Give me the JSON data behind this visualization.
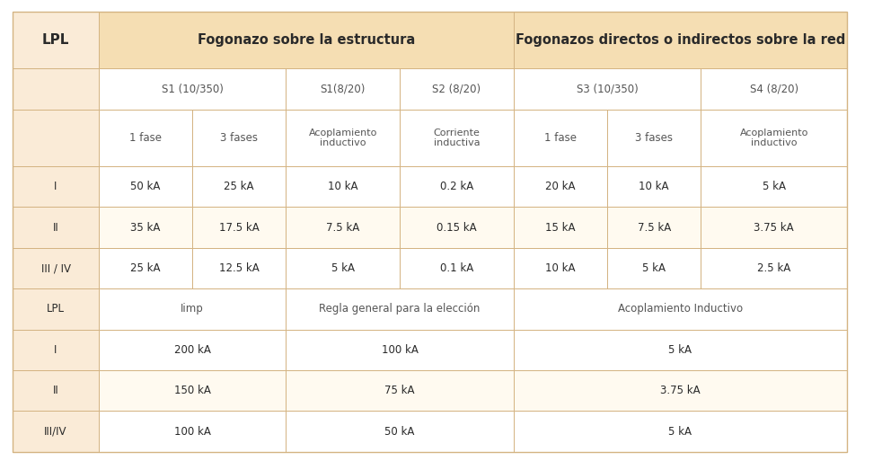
{
  "bg_color": "#FFFFFF",
  "header_bg": "#F5DEB3",
  "header_text_color": "#1A1A1A",
  "subheader_bg": "#FFFFFF",
  "subheader_text_color": "#555555",
  "lpl_col_bg": "#FAEBD7",
  "row_bg1": "#FFFFFF",
  "row_bg2": "#FFFAF0",
  "section_row_bg": "#FFFFFF",
  "border_color": "#D4B483",
  "text_dark": "#2A2A2A",
  "text_gray": "#666666",
  "col_props": [
    0.085,
    0.093,
    0.093,
    0.113,
    0.113,
    0.093,
    0.093,
    0.145
  ],
  "row_props": [
    0.115,
    0.085,
    0.115,
    0.083,
    0.083,
    0.083,
    0.083,
    0.083,
    0.083,
    0.083
  ],
  "header_row": {
    "lpl": "LPL",
    "col1_span_text": "Fogonazo sobre la estructura",
    "col2_span_text": "Fogonazos directos o indirectos sobre la red"
  },
  "subheader_row": {
    "s1_10_350": "S1 (10/350)",
    "s1_8_20": "S1(8/20)",
    "s2_8_20": "S2 (8/20)",
    "s3_10_350": "S3 (10/350)",
    "s4_8_20": "S4 (8/20)"
  },
  "phase_row": {
    "col1": "1 fase",
    "col2": "3 fases",
    "col3": "Acoplamiento\ninductivo",
    "col4": "Corriente\ninductiva",
    "col5": "1 fase",
    "col6": "3 fases",
    "col7": "Acoplamiento\ninductivo"
  },
  "data_rows_top": [
    {
      "lpl": "I",
      "c1": "50 kA",
      "c2": "25 kA",
      "c3": "10 kA",
      "c4": "0.2 kA",
      "c5": "20 kA",
      "c6": "10 kA",
      "c7": "5 kA"
    },
    {
      "lpl": "II",
      "c1": "35 kA",
      "c2": "17.5 kA",
      "c3": "7.5 kA",
      "c4": "0.15 kA",
      "c5": "15 kA",
      "c6": "7.5 kA",
      "c7": "3.75 kA"
    },
    {
      "lpl": "III / IV",
      "c1": "25 kA",
      "c2": "12.5 kA",
      "c3": "5 kA",
      "c4": "0.1 kA",
      "c5": "10 kA",
      "c6": "5 kA",
      "c7": "2.5 kA"
    }
  ],
  "middle_header_row": {
    "lpl": "LPL",
    "limp": "Iimp",
    "regla": "Regla general para la elección",
    "acop": "Acoplamiento Inductivo"
  },
  "data_rows_bottom": [
    {
      "lpl": "I",
      "limp": "200 kA",
      "regla": "100 kA",
      "acop": "5 kA"
    },
    {
      "lpl": "II",
      "limp": "150 kA",
      "regla": "75 kA",
      "acop": "3.75 kA"
    },
    {
      "lpl": "III/IV",
      "limp": "100 kA",
      "regla": "50 kA",
      "acop": "5 kA"
    }
  ]
}
